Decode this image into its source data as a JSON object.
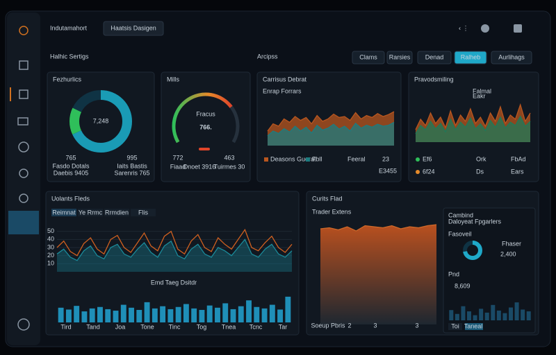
{
  "app": {
    "logo": "Indutamahort",
    "button": "Haatsis Dasigen"
  },
  "page": {
    "title": "Halhic Sertigs",
    "section": "Arcipss",
    "tabs": [
      "Clams",
      "Rarsies",
      "Denad",
      "Ralheb",
      "Aurlihags"
    ],
    "active_tab": 3
  },
  "fezhurlics": {
    "title": "Fezhurlics",
    "total": "7,248",
    "segments": [
      {
        "value": 68,
        "color": "#1a9bb5"
      },
      {
        "value": 14,
        "color": "#2fbf5a"
      },
      {
        "value": 18,
        "color": "#0f3344"
      }
    ],
    "stats": [
      {
        "value": "765",
        "label": "Fasdo Dotals",
        "sub": "Daebis 9405"
      },
      {
        "value": "995",
        "label": "Iaits Bastis",
        "sub": "Sarenris 765"
      }
    ]
  },
  "mills": {
    "title": "Mills",
    "value": "766.",
    "caption": "Fracus",
    "progress": 72,
    "stats": [
      {
        "value": "772",
        "label": "Fiaad",
        "color": "#e0452a"
      },
      {
        "value": "463",
        "label": "Tuirmes 30",
        "color": "#2fbf5a"
      }
    ],
    "middle": "Dnoet 3916"
  },
  "carrisus": {
    "title": "Carrisus Debrat",
    "subtitle": "Enrap Forrars",
    "ylim": [
      0,
      100
    ],
    "series": [
      {
        "name": "Deasons Guerat",
        "color": "#b8561f",
        "values": [
          30,
          45,
          40,
          55,
          48,
          60,
          52,
          58,
          45,
          62,
          50,
          55,
          65,
          58,
          60,
          52,
          68,
          55,
          62,
          58,
          66,
          60,
          64,
          70
        ]
      },
      {
        "name": "Fbll",
        "color": "#1c7c80",
        "values": [
          20,
          30,
          25,
          35,
          28,
          40,
          30,
          38,
          26,
          42,
          32,
          36,
          44,
          34,
          40,
          30,
          46,
          36,
          42,
          38,
          44,
          40,
          42,
          48
        ]
      }
    ],
    "footer": [
      "Feeral",
      "23",
      "E3455"
    ]
  },
  "pravod": {
    "title": "Pravodsmiling",
    "ylim": [
      0,
      100
    ],
    "series": [
      {
        "name": "Falmal",
        "color": "#b8561f",
        "values": [
          30,
          55,
          40,
          70,
          45,
          60,
          35,
          75,
          40,
          65,
          50,
          80,
          45,
          60,
          38,
          70,
          50,
          85,
          45,
          65,
          55,
          90,
          50,
          70
        ]
      },
      {
        "name": "Eakr",
        "color": "#1d7a5a",
        "values": [
          20,
          40,
          30,
          50,
          32,
          45,
          25,
          55,
          30,
          48,
          36,
          58,
          32,
          44,
          28,
          52,
          36,
          60,
          34,
          48,
          40,
          62,
          38,
          50
        ]
      }
    ],
    "table": [
      [
        "Ef6",
        "Ork",
        "FbAd"
      ],
      [
        "6f24",
        "Ds",
        "Ears"
      ]
    ]
  },
  "uolants": {
    "title": "Uolants Fleds",
    "tabs": [
      "Reimnat",
      "Ye Rrmc",
      "Rrmdien",
      "Flis"
    ],
    "ylim": [
      0,
      60
    ],
    "yticks": [
      10,
      20,
      30,
      40,
      50
    ],
    "series": [
      {
        "color": "#d0601f",
        "values": [
          30,
          38,
          25,
          20,
          35,
          42,
          28,
          22,
          40,
          45,
          30,
          24,
          36,
          48,
          32,
          26,
          44,
          50,
          28,
          22,
          38,
          46,
          30,
          25,
          42,
          34,
          28,
          40,
          52,
          30,
          26,
          36,
          44,
          30,
          24,
          34
        ]
      },
      {
        "color": "#1a8a9a",
        "values": [
          22,
          28,
          18,
          14,
          26,
          32,
          20,
          16,
          30,
          34,
          22,
          18,
          28,
          36,
          24,
          18,
          32,
          38,
          20,
          16,
          28,
          34,
          22,
          18,
          30,
          26,
          20,
          30,
          40,
          22,
          18,
          28,
          34,
          22,
          18,
          26
        ]
      }
    ],
    "bars": {
      "ylim": [
        0,
        100
      ],
      "values": [
        40,
        35,
        45,
        30,
        38,
        42,
        36,
        32,
        48,
        40,
        34,
        55,
        38,
        44,
        36,
        42,
        50,
        38,
        34,
        46,
        40,
        52,
        36,
        44,
        60,
        42,
        38,
        48,
        35,
        70
      ]
    },
    "caption": "Emd Taeg Dsitdr",
    "xlabels": [
      "Tird",
      "Tand",
      "Joa",
      "Tone",
      "Tinc",
      "Tog",
      "Tnea",
      "Tcnc",
      "Tar"
    ]
  },
  "curits": {
    "title": "Curits Flad",
    "chart_title": "Trader Extens",
    "ylim": [
      0,
      100
    ],
    "values": [
      92,
      93,
      91,
      94,
      90,
      95,
      94,
      93,
      95,
      92,
      94,
      93,
      95,
      96
    ],
    "xlabels": [
      "Soeup Pbris",
      "2",
      "3",
      "3"
    ]
  },
  "cambind": {
    "title": "Cambind",
    "subtitle": "Daloyeat Fpgarlers",
    "donut_label": "Fasoveil",
    "progress": 72,
    "value_label": "Fhaser",
    "value": "2,400"
  },
  "pnd": {
    "title": "Pnd",
    "value": "8,609",
    "ylim": [
      0,
      100
    ],
    "bars": [
      40,
      25,
      55,
      35,
      20,
      45,
      30,
      60,
      38,
      28,
      50,
      70,
      42,
      35
    ],
    "buttons": [
      "Toi",
      "Taneal"
    ]
  }
}
